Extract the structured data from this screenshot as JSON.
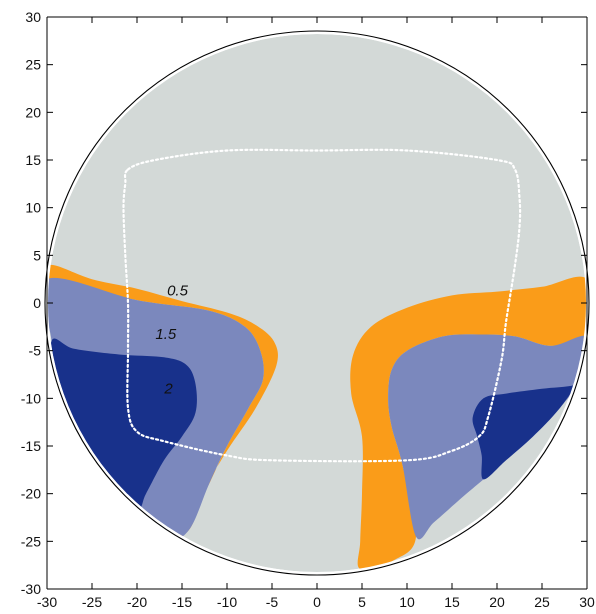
{
  "chart_data": {
    "type": "contour",
    "title": "",
    "xlabel": "",
    "ylabel": "",
    "xlim": [
      -30,
      30
    ],
    "ylim": [
      -30,
      30
    ],
    "x_ticks": [
      -30,
      -25,
      -20,
      -15,
      -10,
      -5,
      0,
      5,
      10,
      15,
      20,
      25,
      30
    ],
    "y_ticks": [
      -30,
      -25,
      -20,
      -15,
      -10,
      -5,
      0,
      5,
      10,
      15,
      20,
      25,
      30
    ],
    "grid": false,
    "legend": "none",
    "colors": {
      "background": "#d3d9d7",
      "level_0_5_band": "#fa9c19",
      "level_1_5_band": "#7b88bd",
      "level_2_band": "#18318b",
      "dotted_outline": "#ffffff"
    },
    "contour_labels": [
      {
        "text": "0.5",
        "x": -15.5,
        "y": 0.8
      },
      {
        "text": "1.5",
        "x": -16.8,
        "y": -3.8
      },
      {
        "text": "2",
        "x": -16.5,
        "y": -9.5
      }
    ],
    "regions": [
      {
        "name": "0.5",
        "color": "#fa9c19",
        "polygons": [
          [
            [
              -29.5,
              4
            ],
            [
              -25,
              2.5
            ],
            [
              -20,
              1.5
            ],
            [
              -15,
              0.2
            ],
            [
              -10,
              -1
            ],
            [
              -7,
              -2.2
            ],
            [
              -4.8,
              -4
            ],
            [
              -4.5,
              -6.5
            ],
            [
              -6.8,
              -11
            ],
            [
              -10,
              -15.5
            ],
            [
              -12.8,
              -20
            ],
            [
              -14.5,
              -23.5
            ],
            [
              -16,
              -25
            ],
            [
              -14,
              -23.5
            ],
            [
              -12.5,
              -19.5
            ],
            [
              -12,
              -19
            ],
            [
              -10,
              -15
            ],
            [
              -7.6,
              -11
            ],
            [
              -6,
              -8
            ],
            [
              -6.3,
              -5
            ],
            [
              -8,
              -2.5
            ],
            [
              -12,
              -0.8
            ],
            [
              -20,
              0.3
            ],
            [
              -30,
              2.5
            ]
          ],
          [
            [
              30,
              2.5
            ],
            [
              25,
              1.7
            ],
            [
              20,
              1.2
            ],
            [
              15,
              0.8
            ],
            [
              10,
              -0.5
            ],
            [
              6,
              -2.5
            ],
            [
              4,
              -5.5
            ],
            [
              3.8,
              -9.5
            ],
            [
              5,
              -14
            ],
            [
              5,
              -20
            ],
            [
              4.8,
              -25
            ],
            [
              4.8,
              -27.9
            ],
            [
              8.5,
              -27
            ],
            [
              11,
              -24.5
            ],
            [
              9.5,
              -17
            ],
            [
              8.3,
              -13
            ],
            [
              7.9,
              -10
            ],
            [
              8.3,
              -7
            ],
            [
              10,
              -5
            ],
            [
              14,
              -3.5
            ],
            [
              18,
              -3.3
            ],
            [
              22,
              -3.5
            ],
            [
              26,
              -4.5
            ],
            [
              30,
              -3.5
            ]
          ]
        ]
      },
      {
        "name": "1.5",
        "color": "#7b88bd",
        "polygons": [
          [
            [
              -30,
              2.5
            ],
            [
              -20,
              0.3
            ],
            [
              -12,
              -0.8
            ],
            [
              -8,
              -2.5
            ],
            [
              -6.3,
              -5
            ],
            [
              -6,
              -8
            ],
            [
              -7.6,
              -11
            ],
            [
              -10,
              -15
            ],
            [
              -12,
              -19
            ],
            [
              -14,
              -23.5
            ],
            [
              -16,
              -25
            ],
            [
              -17.5,
              -24.5
            ],
            [
              -20,
              -21.5
            ],
            [
              -23,
              -18.5
            ],
            [
              -26,
              -15
            ],
            [
              -29,
              -10
            ],
            [
              -29.5,
              -4
            ]
          ],
          [
            [
              30,
              -3.5
            ],
            [
              26,
              -4.5
            ],
            [
              22,
              -3.5
            ],
            [
              18,
              -3.3
            ],
            [
              14,
              -3.5
            ],
            [
              10,
              -5
            ],
            [
              8.3,
              -7
            ],
            [
              7.9,
              -10
            ],
            [
              8.3,
              -13
            ],
            [
              9.5,
              -17
            ],
            [
              11,
              -24.5
            ],
            [
              13,
              -23
            ],
            [
              16,
              -20.5
            ],
            [
              18.5,
              -18.5
            ],
            [
              21,
              -16.5
            ],
            [
              24,
              -14
            ],
            [
              27,
              -11
            ],
            [
              30,
              -7
            ]
          ]
        ]
      },
      {
        "name": "2",
        "color": "#18318b",
        "polygons": [
          [
            [
              -29.5,
              -4
            ],
            [
              -29,
              -10
            ],
            [
              -26,
              -15
            ],
            [
              -23,
              -18.5
            ],
            [
              -20,
              -21.5
            ],
            [
              -19,
              -20
            ],
            [
              -17,
              -16.5
            ],
            [
              -15,
              -14
            ],
            [
              -13.5,
              -11.5
            ],
            [
              -13.5,
              -8.5
            ],
            [
              -14.5,
              -6.5
            ],
            [
              -17,
              -5.7
            ],
            [
              -22,
              -5.4
            ],
            [
              -27,
              -4.8
            ]
          ],
          [
            [
              30,
              -7
            ],
            [
              27,
              -11
            ],
            [
              24,
              -14
            ],
            [
              21,
              -16.5
            ],
            [
              18.5,
              -18.5
            ],
            [
              18.3,
              -16
            ],
            [
              17.8,
              -14
            ],
            [
              17.3,
              -12
            ],
            [
              18.5,
              -10
            ],
            [
              21,
              -9.5
            ],
            [
              25,
              -9
            ],
            [
              29,
              -8.5
            ]
          ]
        ]
      }
    ],
    "dotted_outline": [
      [
        -21,
        14
      ],
      [
        -18,
        15
      ],
      [
        -10,
        16
      ],
      [
        0,
        16
      ],
      [
        10,
        16
      ],
      [
        20,
        15
      ],
      [
        22,
        14
      ],
      [
        22.5,
        11
      ],
      [
        22.5,
        8
      ],
      [
        22,
        4
      ],
      [
        21,
        -2
      ],
      [
        20.5,
        -6
      ],
      [
        19,
        -12
      ],
      [
        18,
        -14
      ],
      [
        15,
        -15.5
      ],
      [
        10,
        -16.5
      ],
      [
        -5,
        -16.5
      ],
      [
        -10,
        -16
      ],
      [
        -17,
        -14.5
      ],
      [
        -20,
        -13.5
      ],
      [
        -21,
        -11
      ],
      [
        -21,
        -5
      ],
      [
        -21,
        0
      ],
      [
        -21.3,
        5
      ],
      [
        -21.5,
        10
      ],
      [
        -21.3,
        12.5
      ]
    ]
  }
}
